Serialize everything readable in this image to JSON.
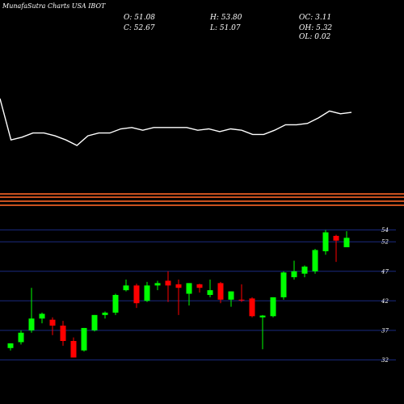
{
  "brand": "MunafaSutra Charts USA IBOT",
  "ohlc": {
    "o_label": "O: 51.08",
    "h_label": "H: 53.80",
    "oc_label": "OC: 3.11",
    "c_label": "C: 52.67",
    "l_label": "L: 51.07",
    "oh_label": "OH: 5.32",
    "ol_label": "OL: 0.02"
  },
  "colors": {
    "background": "#000000",
    "up": "#00ff00",
    "down": "#ff0000",
    "grid": "#1a2a80",
    "line": "#ffffff",
    "band": "#c8501e"
  },
  "chart_data": [
    {
      "type": "line",
      "values": [
        60,
        30,
        32,
        35,
        35,
        33,
        30,
        26,
        33,
        35,
        35,
        38,
        39,
        37,
        39,
        39,
        39,
        39,
        37,
        38,
        36,
        38,
        37,
        34,
        34,
        37,
        41,
        41,
        42,
        46,
        51,
        49,
        50
      ]
    },
    {
      "type": "candlestick",
      "ylim": [
        30,
        56
      ],
      "yticks": [
        32,
        37,
        42,
        47,
        52,
        54
      ],
      "candles": [
        {
          "o": 34.0,
          "h": 34.8,
          "l": 33.6,
          "c": 34.8
        },
        {
          "o": 35.0,
          "h": 37.0,
          "l": 34.6,
          "c": 36.6
        },
        {
          "o": 37.0,
          "h": 44.2,
          "l": 36.6,
          "c": 39.0
        },
        {
          "o": 39.0,
          "h": 40.0,
          "l": 38.2,
          "c": 39.8
        },
        {
          "o": 38.8,
          "h": 39.2,
          "l": 36.2,
          "c": 37.8
        },
        {
          "o": 37.8,
          "h": 38.6,
          "l": 34.4,
          "c": 35.2
        },
        {
          "o": 35.2,
          "h": 35.8,
          "l": 32.4,
          "c": 32.4
        },
        {
          "o": 33.6,
          "h": 37.4,
          "l": 33.4,
          "c": 37.4
        },
        {
          "o": 37.0,
          "h": 39.6,
          "l": 36.8,
          "c": 39.6
        },
        {
          "o": 39.6,
          "h": 40.2,
          "l": 39.0,
          "c": 40.0
        },
        {
          "o": 40.0,
          "h": 43.2,
          "l": 39.6,
          "c": 43.0
        },
        {
          "o": 43.8,
          "h": 45.6,
          "l": 43.6,
          "c": 44.6
        },
        {
          "o": 44.6,
          "h": 44.9,
          "l": 40.8,
          "c": 41.6
        },
        {
          "o": 42.0,
          "h": 45.2,
          "l": 41.8,
          "c": 44.6
        },
        {
          "o": 44.6,
          "h": 45.4,
          "l": 43.8,
          "c": 45.0
        },
        {
          "o": 45.4,
          "h": 47.0,
          "l": 41.8,
          "c": 44.6
        },
        {
          "o": 44.8,
          "h": 45.6,
          "l": 39.6,
          "c": 44.2
        },
        {
          "o": 43.2,
          "h": 45.0,
          "l": 41.2,
          "c": 45.0
        },
        {
          "o": 44.8,
          "h": 44.9,
          "l": 43.4,
          "c": 44.2
        },
        {
          "o": 43.0,
          "h": 45.6,
          "l": 42.6,
          "c": 43.8
        },
        {
          "o": 45.0,
          "h": 45.2,
          "l": 41.6,
          "c": 42.2
        },
        {
          "o": 42.2,
          "h": 43.6,
          "l": 41.0,
          "c": 43.6
        },
        {
          "o": 42.2,
          "h": 44.8,
          "l": 41.8,
          "c": 42.1
        },
        {
          "o": 42.4,
          "h": 42.6,
          "l": 39.2,
          "c": 39.4
        },
        {
          "o": 39.2,
          "h": 39.6,
          "l": 33.8,
          "c": 39.5
        },
        {
          "o": 39.4,
          "h": 42.6,
          "l": 39.2,
          "c": 42.6
        },
        {
          "o": 42.6,
          "h": 47.0,
          "l": 42.2,
          "c": 46.8
        },
        {
          "o": 46.0,
          "h": 48.8,
          "l": 45.6,
          "c": 47.0
        },
        {
          "o": 46.6,
          "h": 48.0,
          "l": 46.0,
          "c": 47.8
        },
        {
          "o": 47.0,
          "h": 50.8,
          "l": 46.6,
          "c": 50.6
        },
        {
          "o": 50.4,
          "h": 54.0,
          "l": 49.8,
          "c": 53.6
        },
        {
          "o": 53.0,
          "h": 53.2,
          "l": 48.6,
          "c": 52.2
        },
        {
          "o": 51.08,
          "h": 53.8,
          "l": 51.07,
          "c": 52.67
        }
      ]
    }
  ]
}
